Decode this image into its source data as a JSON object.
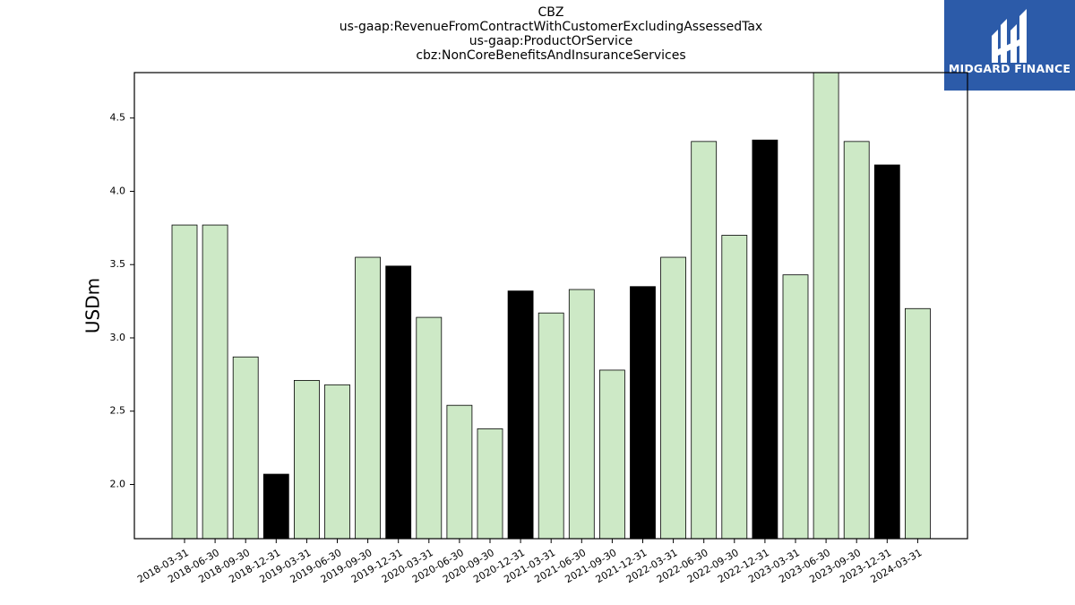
{
  "header": {
    "lines": [
      "CBZ",
      "us-gaap:RevenueFromContractWithCustomerExcludingAssessedTax",
      "us-gaap:ProductOrService",
      "cbz:NonCoreBenefitsAndInsuranceServices"
    ]
  },
  "logo": {
    "text": "MIDGARD FINANCE",
    "bg_color": "#2c5ba9"
  },
  "chart_data": {
    "type": "bar",
    "ylabel": "USDm",
    "xlabel": "",
    "ylim": [
      1.63,
      4.81
    ],
    "yticks": [
      2.0,
      2.5,
      3.0,
      3.5,
      4.0,
      4.5
    ],
    "grid": false,
    "colors": {
      "normal": "#cde9c6",
      "highlight": "#000000",
      "edge": "#000000"
    },
    "categories": [
      "2018-03-31",
      "2018-06-30",
      "2018-09-30",
      "2018-12-31",
      "2019-03-31",
      "2019-06-30",
      "2019-09-30",
      "2019-12-31",
      "2020-03-31",
      "2020-06-30",
      "2020-09-30",
      "2020-12-31",
      "2021-03-31",
      "2021-06-30",
      "2021-09-30",
      "2021-12-31",
      "2022-03-31",
      "2022-06-30",
      "2022-09-30",
      "2022-12-31",
      "2023-03-31",
      "2023-06-30",
      "2023-09-30",
      "2023-12-31",
      "2024-03-31"
    ],
    "values": [
      3.77,
      3.77,
      2.87,
      2.07,
      2.71,
      2.68,
      3.55,
      3.49,
      3.14,
      2.54,
      2.38,
      3.32,
      3.17,
      3.33,
      2.78,
      3.35,
      3.55,
      4.34,
      3.7,
      4.35,
      3.43,
      4.81,
      4.34,
      4.18,
      3.2
    ],
    "highlight": [
      false,
      false,
      false,
      true,
      false,
      false,
      false,
      true,
      false,
      false,
      false,
      true,
      false,
      false,
      false,
      true,
      false,
      false,
      false,
      true,
      false,
      false,
      false,
      true,
      false
    ]
  }
}
